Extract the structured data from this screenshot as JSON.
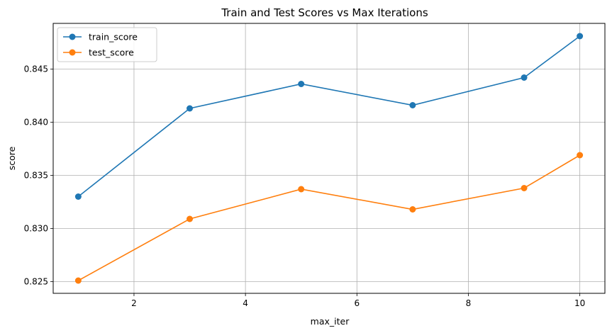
{
  "chart_data": {
    "type": "line",
    "title": "Train and Test Scores vs Max Iterations",
    "xlabel": "max_iter",
    "ylabel": "score",
    "x": [
      1,
      3,
      5,
      7,
      9,
      10
    ],
    "xlim": [
      0.55,
      10.45
    ],
    "ylim": [
      0.8239,
      0.8493
    ],
    "xticks": [
      2,
      4,
      6,
      8,
      10
    ],
    "yticks": [
      0.825,
      0.83,
      0.835,
      0.84,
      0.845
    ],
    "xtick_labels": [
      "2",
      "4",
      "6",
      "8",
      "10"
    ],
    "ytick_labels": [
      "0.825",
      "0.830",
      "0.835",
      "0.840",
      "0.845"
    ],
    "grid": true,
    "legend_position": "top-left",
    "series": [
      {
        "name": "train_score",
        "color": "#1f77b4",
        "marker": "circle",
        "values": [
          0.833,
          0.8413,
          0.8436,
          0.8416,
          0.8442,
          0.8481
        ]
      },
      {
        "name": "test_score",
        "color": "#ff7f0e",
        "marker": "circle",
        "values": [
          0.8251,
          0.8309,
          0.8337,
          0.8318,
          0.8338,
          0.8369
        ]
      }
    ]
  }
}
